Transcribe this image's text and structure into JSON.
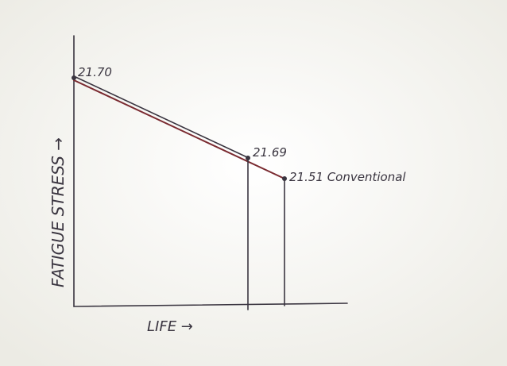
{
  "axes": {
    "y_label": "FATIGUE STRESS →",
    "x_label": "LIFE →"
  },
  "points": [
    {
      "label": "21.70"
    },
    {
      "label": "21.69"
    },
    {
      "label": "21.51 Conventional"
    }
  ]
}
